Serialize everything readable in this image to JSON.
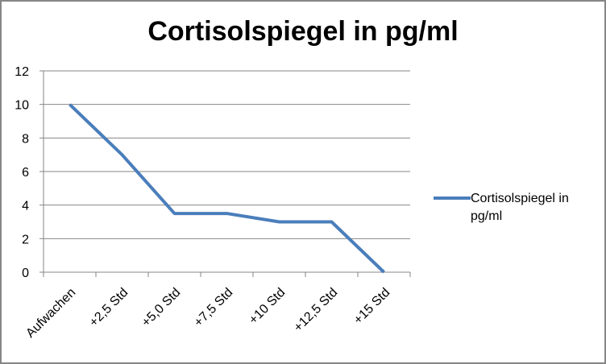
{
  "chart_data": {
    "type": "line",
    "title": "Cortisolspiegel in pg/ml",
    "xlabel": "",
    "ylabel": "",
    "categories": [
      "Aufwachen",
      "+2,5 Std",
      "+5,0 Std",
      "+7,5 Std",
      "+10 Std",
      "+12,5 Std",
      "+15 Std"
    ],
    "series": [
      {
        "name": "Cortisolspiegel in pg/ml",
        "values": [
          10,
          7,
          3.5,
          3.5,
          3,
          3,
          0
        ],
        "color": "#4a7ebb"
      }
    ],
    "ylim": [
      0,
      12
    ],
    "yticks": [
      "0",
      "2",
      "4",
      "6",
      "8",
      "10",
      "12"
    ],
    "grid": true,
    "legend_position": "right"
  },
  "legend": {
    "label": "Cortisolspiegel in pg/ml"
  }
}
